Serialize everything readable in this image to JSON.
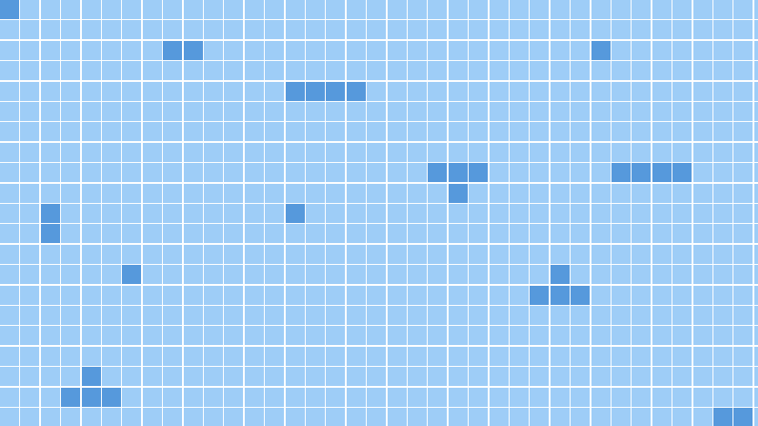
{
  "board": {
    "columns": 38,
    "rows": 21,
    "empty_color": "#9ecdf7",
    "filled_color": "#5699dc",
    "grid_line_color": "#ffffff",
    "filled_cells": [
      [
        0,
        0
      ],
      [
        2,
        8
      ],
      [
        2,
        9
      ],
      [
        2,
        29
      ],
      [
        4,
        14
      ],
      [
        4,
        15
      ],
      [
        4,
        16
      ],
      [
        4,
        17
      ],
      [
        8,
        21
      ],
      [
        8,
        22
      ],
      [
        8,
        23
      ],
      [
        8,
        30
      ],
      [
        8,
        31
      ],
      [
        8,
        32
      ],
      [
        8,
        33
      ],
      [
        9,
        22
      ],
      [
        10,
        2
      ],
      [
        10,
        14
      ],
      [
        11,
        2
      ],
      [
        13,
        6
      ],
      [
        13,
        27
      ],
      [
        14,
        26
      ],
      [
        14,
        27
      ],
      [
        14,
        28
      ],
      [
        18,
        4
      ],
      [
        19,
        3
      ],
      [
        19,
        4
      ],
      [
        19,
        5
      ],
      [
        20,
        35
      ],
      [
        20,
        36
      ]
    ]
  }
}
